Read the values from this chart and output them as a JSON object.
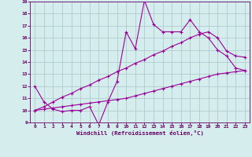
{
  "x": [
    0,
    1,
    2,
    3,
    4,
    5,
    6,
    7,
    8,
    9,
    10,
    11,
    12,
    13,
    14,
    15,
    16,
    17,
    18,
    19,
    20,
    21,
    22,
    23
  ],
  "line_zigzag": [
    12.0,
    10.7,
    10.1,
    9.9,
    10.0,
    10.0,
    10.3,
    8.8,
    10.7,
    12.4,
    16.5,
    15.1,
    19.1,
    17.1,
    16.5,
    16.5,
    16.5,
    17.5,
    16.5,
    16.0,
    15.0,
    14.5,
    13.5,
    13.3
  ],
  "line_upper": [
    10.0,
    10.3,
    10.7,
    11.1,
    11.4,
    11.8,
    12.1,
    12.5,
    12.8,
    13.2,
    13.5,
    13.9,
    14.2,
    14.6,
    14.9,
    15.3,
    15.6,
    16.0,
    16.3,
    16.5,
    16.0,
    14.9,
    14.5,
    14.4
  ],
  "line_lower": [
    10.0,
    10.1,
    10.2,
    10.3,
    10.4,
    10.5,
    10.6,
    10.7,
    10.8,
    10.9,
    11.0,
    11.2,
    11.4,
    11.6,
    11.8,
    12.0,
    12.2,
    12.4,
    12.6,
    12.8,
    13.0,
    13.1,
    13.2,
    13.3
  ],
  "line_color": "#990099",
  "bg_color": "#d6eded",
  "grid_color": "#b0cccc",
  "xlabel": "Windchill (Refroidissement éolien,°C)",
  "xlim": [
    -0.5,
    23.5
  ],
  "ylim": [
    9,
    19
  ],
  "yticks": [
    9,
    10,
    11,
    12,
    13,
    14,
    15,
    16,
    17,
    18,
    19
  ],
  "xticks": [
    0,
    1,
    2,
    3,
    4,
    5,
    6,
    7,
    8,
    9,
    10,
    11,
    12,
    13,
    14,
    15,
    16,
    17,
    18,
    19,
    20,
    21,
    22,
    23
  ]
}
